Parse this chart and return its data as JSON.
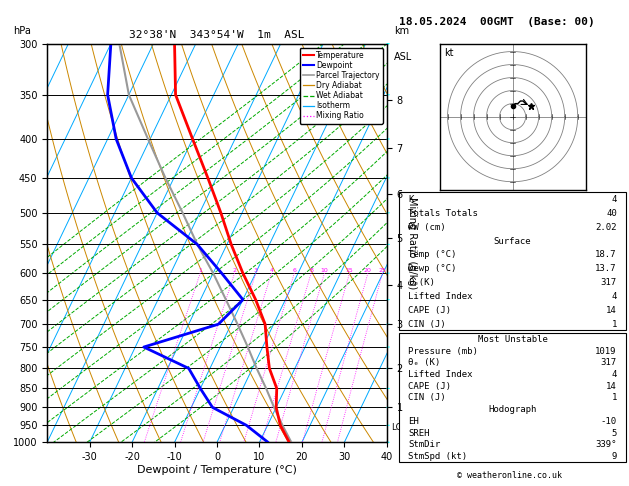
{
  "title_left": "32°38'N  343°54'W  1m  ASL",
  "title_date": "18.05.2024  00GMT  (Base: 00)",
  "xlabel": "Dewpoint / Temperature (°C)",
  "pressure_levels": [
    300,
    350,
    400,
    450,
    500,
    550,
    600,
    650,
    700,
    750,
    800,
    850,
    900,
    950,
    1000
  ],
  "temp_profile": {
    "pressure": [
      1019,
      1000,
      950,
      900,
      850,
      800,
      750,
      700,
      650,
      600,
      550,
      500,
      450,
      400,
      350,
      300
    ],
    "temperature": [
      18.7,
      17.0,
      13.0,
      10.0,
      8.0,
      4.0,
      1.0,
      -2.0,
      -7.0,
      -13.0,
      -19.0,
      -25.0,
      -32.0,
      -40.0,
      -49.0,
      -55.0
    ]
  },
  "dewpoint_profile": {
    "pressure": [
      1019,
      1000,
      950,
      900,
      850,
      800,
      750,
      700,
      650,
      600,
      550,
      500,
      450,
      400,
      350,
      300
    ],
    "temperature": [
      13.7,
      12.0,
      5.0,
      -5.0,
      -10.0,
      -15.0,
      -28.0,
      -13.0,
      -10.0,
      -18.0,
      -27.0,
      -40.0,
      -50.0,
      -58.0,
      -65.0,
      -70.0
    ]
  },
  "parcel_profile": {
    "pressure": [
      1019,
      1000,
      950,
      900,
      850,
      800,
      750,
      700,
      650,
      600,
      550,
      500,
      450,
      400,
      350,
      300
    ],
    "temperature": [
      18.7,
      17.5,
      13.5,
      9.5,
      5.5,
      1.0,
      -3.5,
      -8.5,
      -14.0,
      -20.0,
      -27.0,
      -34.0,
      -42.0,
      -50.5,
      -60.0,
      -68.0
    ]
  },
  "lcl_pressure": 955,
  "colors": {
    "temperature": "red",
    "dewpoint": "blue",
    "parcel": "#999999",
    "dry_adiabat": "#cc8800",
    "wet_adiabat": "#00aa00",
    "isotherm": "#00aaff",
    "mixing_ratio": "magenta",
    "isobar": "black"
  },
  "stats": {
    "K": "4",
    "Totals_Totals": "40",
    "PW_cm": "2.02",
    "Surface_Temp": "18.7",
    "Surface_Dewp": "13.7",
    "Surface_theta_e": "317",
    "Surface_LI": "4",
    "Surface_CAPE": "14",
    "Surface_CIN": "1",
    "MU_Pressure": "1019",
    "MU_theta_e": "317",
    "MU_LI": "4",
    "MU_CAPE": "14",
    "MU_CIN": "1",
    "Hodo_EH": "-10",
    "Hodo_SREH": "5",
    "Hodo_StmDir": "339°",
    "Hodo_StmSpd": "9"
  }
}
